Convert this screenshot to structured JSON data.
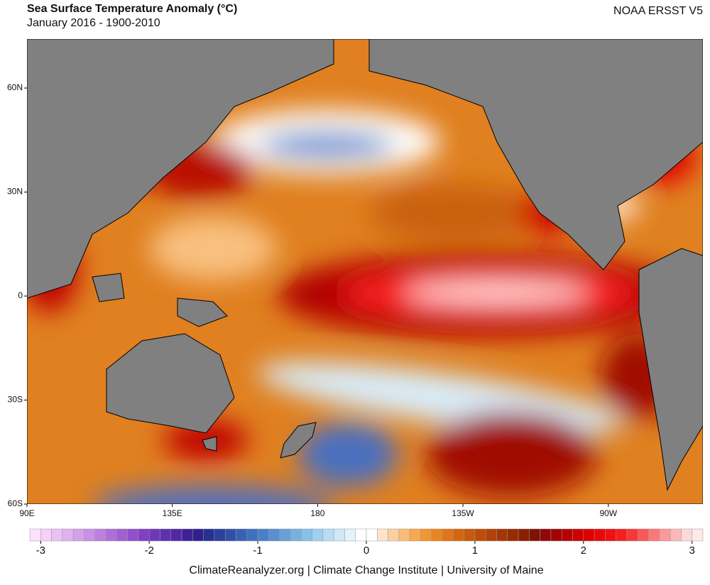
{
  "header": {
    "title": "Sea Surface Temperature Anomaly (°C)",
    "subtitle": "January 2016 - 1900-2010",
    "source": "NOAA ERSST V5"
  },
  "map": {
    "lat_labels": [
      "60N",
      "30N",
      "0",
      "30S",
      "60S"
    ],
    "lon_labels": [
      "90E",
      "135E",
      "180",
      "135W",
      "90W"
    ]
  },
  "colorbar": {
    "lim": [
      -3.1,
      3.1
    ],
    "ticks": [
      -3,
      -2,
      -1,
      0,
      1,
      2,
      3
    ],
    "colors": [
      "#fde0fd",
      "#f5d0f8",
      "#ecc0f3",
      "#e0b0ef",
      "#d4a0eb",
      "#c890e6",
      "#bb80e0",
      "#ad70d9",
      "#9f60d2",
      "#9050ca",
      "#8040c2",
      "#7038b8",
      "#6030ad",
      "#5028a3",
      "#402098",
      "#30208f",
      "#283090",
      "#2a409c",
      "#3050a8",
      "#3860b4",
      "#4070c0",
      "#4a80c8",
      "#5890d0",
      "#68a0d8",
      "#78b0e0",
      "#88c0e8",
      "#a0d0f0",
      "#b8ddf5",
      "#d0e8f8",
      "#e4f2fb",
      "#ffffff",
      "#ffffff",
      "#fde4c8",
      "#fbd0a0",
      "#f9bc78",
      "#f7a850",
      "#f29630",
      "#e88520",
      "#de7518",
      "#d46610",
      "#c85a0c",
      "#bc4e08",
      "#b04206",
      "#a43604",
      "#982a02",
      "#8c1e00",
      "#801200",
      "#900808",
      "#a40404",
      "#b80000",
      "#cc0000",
      "#dc0000",
      "#e80808",
      "#f01010",
      "#f42020",
      "#f83838",
      "#fa5858",
      "#fb7878",
      "#fc9898",
      "#fdb8b8",
      "#fed8d8",
      "#ffe8e8"
    ]
  },
  "footer": {
    "credit": "ClimateReanalyzer.org | Climate Change Institute | University of Maine"
  }
}
